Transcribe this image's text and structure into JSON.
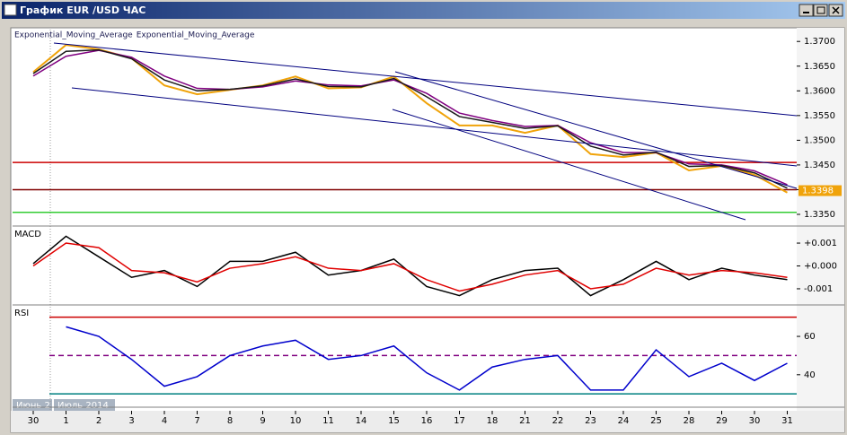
{
  "window": {
    "title": "График EUR /USD  ЧАС"
  },
  "date_tags": [
    "Июнь 2",
    "Июль 2014"
  ],
  "chart_data": [
    {
      "type": "line",
      "categories": [
        "30",
        "1",
        "2",
        "3",
        "4",
        "7",
        "8",
        "9",
        "10",
        "11",
        "14",
        "15",
        "16",
        "17",
        "18",
        "21",
        "22",
        "23",
        "24",
        "25",
        "28",
        "29",
        "30",
        "31"
      ],
      "series": [
        {
          "color": "#f0a30a",
          "values": [
            1.3638,
            1.3693,
            1.3684,
            1.3666,
            1.3611,
            1.3593,
            1.3602,
            1.3611,
            1.3629,
            1.3605,
            1.3607,
            1.3629,
            1.3575,
            1.353,
            1.353,
            1.3515,
            1.353,
            1.3472,
            1.3466,
            1.3475,
            1.3439,
            1.3448,
            1.343,
            1.3394
          ]
        },
        {
          "name": "Exponential_Moving_Average",
          "color": "#800080",
          "values": [
            1.363,
            1.367,
            1.3682,
            1.3668,
            1.363,
            1.3605,
            1.3603,
            1.3608,
            1.362,
            1.3612,
            1.361,
            1.3622,
            1.3595,
            1.3555,
            1.354,
            1.3528,
            1.353,
            1.3495,
            1.3475,
            1.3475,
            1.3452,
            1.345,
            1.3438,
            1.341
          ]
        },
        {
          "name": "Exponential_Moving_Average",
          "color": "#1a1a1a",
          "values": [
            1.3635,
            1.368,
            1.3683,
            1.3665,
            1.3622,
            1.36,
            1.3603,
            1.361,
            1.3624,
            1.3609,
            1.3608,
            1.3625,
            1.3588,
            1.3548,
            1.3536,
            1.3524,
            1.3529,
            1.3488,
            1.347,
            1.3476,
            1.3447,
            1.3449,
            1.3434,
            1.3403
          ]
        }
      ],
      "hlines": [
        {
          "value": 1.3455,
          "color": "#cc0000"
        },
        {
          "value": 1.34,
          "color": "#800000"
        },
        {
          "value": 1.3354,
          "color": "#33cc33"
        }
      ],
      "last_value": 1.3398,
      "ylim": [
        1.333,
        1.3724
      ],
      "yticks": [
        {
          "value": 1.37,
          "label": "1.3700"
        },
        {
          "value": 1.365,
          "label": "1.3650"
        },
        {
          "value": 1.36,
          "label": "1.3600"
        },
        {
          "value": 1.355,
          "label": "1.3550"
        },
        {
          "value": 1.35,
          "label": "1.3500"
        },
        {
          "value": 1.345,
          "label": "1.3450"
        },
        {
          "value": 1.34,
          "label": "1.3400"
        },
        {
          "value": 1.335,
          "label": "1.3350"
        }
      ]
    },
    {
      "type": "line",
      "title": "MACD",
      "series": [
        {
          "color": "#000000",
          "values": [
            0.0001,
            0.0013,
            0.0004,
            -0.0005,
            -0.0002,
            -0.0009,
            0.0002,
            0.0002,
            0.0006,
            -0.0004,
            -0.0002,
            0.0003,
            -0.0009,
            -0.0013,
            -0.0006,
            -0.0002,
            -0.0001,
            -0.0013,
            -0.0006,
            0.0002,
            -0.0006,
            -0.0001,
            -0.0004,
            -0.0006
          ]
        },
        {
          "color": "#e00000",
          "values": [
            0.0,
            0.001,
            0.0008,
            -0.0002,
            -0.0003,
            -0.0007,
            -0.0001,
            0.0001,
            0.0004,
            -0.0001,
            -0.0002,
            0.0001,
            -0.0006,
            -0.0011,
            -0.0008,
            -0.0004,
            -0.0002,
            -0.001,
            -0.0008,
            -0.0001,
            -0.0004,
            -0.0002,
            -0.0003,
            -0.0005
          ]
        }
      ],
      "ylim": [
        -0.00163,
        0.00163
      ],
      "yticks": [
        {
          "value": 0.001,
          "label": "+0.001"
        },
        {
          "value": 0,
          "label": "+0.000"
        },
        {
          "value": -0.001,
          "label": "-0.001"
        }
      ]
    },
    {
      "type": "line",
      "title": "RSI",
      "series": [
        {
          "color": "#0000cc",
          "values": [
            null,
            65,
            60,
            48,
            34,
            39,
            50,
            55,
            58,
            48,
            50,
            55,
            41,
            32,
            44,
            48,
            50,
            32,
            32,
            53,
            39,
            46,
            37,
            46
          ]
        }
      ],
      "hlines": [
        {
          "value": 70,
          "color": "#cc0000"
        },
        {
          "value": 50,
          "color": "#800080",
          "dash": true
        },
        {
          "value": 30,
          "color": "#008080"
        }
      ],
      "ylim": [
        24,
        75
      ],
      "yticks": [
        60,
        40
      ]
    }
  ]
}
